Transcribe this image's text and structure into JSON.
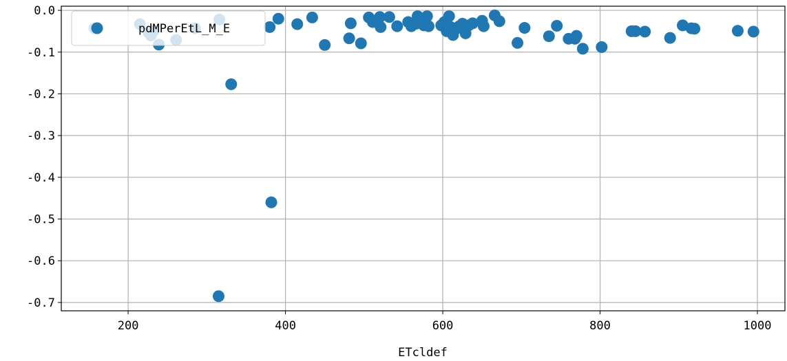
{
  "chart_data": {
    "type": "scatter",
    "xlabel": "ETcldef",
    "ylabel": "",
    "xlim": [
      115,
      1035
    ],
    "ylim": [
      -0.72,
      0.01
    ],
    "xticks": [
      200,
      400,
      600,
      800,
      1000
    ],
    "yticks": [
      0.0,
      -0.1,
      -0.2,
      -0.3,
      -0.4,
      -0.5,
      -0.6,
      -0.7
    ],
    "ytick_labels": [
      "0.0",
      "-0.1",
      "-0.2",
      "-0.3",
      "-0.4",
      "-0.5",
      "-0.6",
      "-0.7"
    ],
    "grid": true,
    "legend_position": "top-left",
    "color": "#1f77b4",
    "series": [
      {
        "name": "pdMPerEtL_M_E",
        "points": [
          [
            157,
            -0.043
          ],
          [
            215,
            -0.033
          ],
          [
            226,
            -0.053
          ],
          [
            229,
            -0.06
          ],
          [
            232,
            -0.05
          ],
          [
            239,
            -0.082
          ],
          [
            261,
            -0.071
          ],
          [
            285,
            -0.043
          ],
          [
            315,
            -0.685
          ],
          [
            316,
            -0.022
          ],
          [
            331,
            -0.177
          ],
          [
            380,
            -0.04
          ],
          [
            382,
            -0.46
          ],
          [
            391,
            -0.02
          ],
          [
            415,
            -0.033
          ],
          [
            434,
            -0.017
          ],
          [
            450,
            -0.083
          ],
          [
            481,
            -0.067
          ],
          [
            483,
            -0.031
          ],
          [
            496,
            -0.079
          ],
          [
            506,
            -0.017
          ],
          [
            511,
            -0.028
          ],
          [
            520,
            -0.016
          ],
          [
            521,
            -0.04
          ],
          [
            532,
            -0.016
          ],
          [
            542,
            -0.038
          ],
          [
            556,
            -0.028
          ],
          [
            560,
            -0.038
          ],
          [
            566,
            -0.032
          ],
          [
            568,
            -0.014
          ],
          [
            573,
            -0.026
          ],
          [
            576,
            -0.036
          ],
          [
            580,
            -0.014
          ],
          [
            582,
            -0.038
          ],
          [
            598,
            -0.036
          ],
          [
            602,
            -0.028
          ],
          [
            605,
            -0.05
          ],
          [
            608,
            -0.014
          ],
          [
            610,
            -0.04
          ],
          [
            613,
            -0.059
          ],
          [
            617,
            -0.044
          ],
          [
            621,
            -0.038
          ],
          [
            625,
            -0.032
          ],
          [
            629,
            -0.055
          ],
          [
            633,
            -0.036
          ],
          [
            638,
            -0.031
          ],
          [
            650,
            -0.025
          ],
          [
            652,
            -0.038
          ],
          [
            666,
            -0.012
          ],
          [
            672,
            -0.026
          ],
          [
            695,
            -0.078
          ],
          [
            704,
            -0.042
          ],
          [
            735,
            -0.062
          ],
          [
            745,
            -0.037
          ],
          [
            760,
            -0.068
          ],
          [
            768,
            -0.068
          ],
          [
            770,
            -0.061
          ],
          [
            778,
            -0.092
          ],
          [
            802,
            -0.088
          ],
          [
            840,
            -0.05
          ],
          [
            845,
            -0.05
          ],
          [
            857,
            -0.051
          ],
          [
            889,
            -0.066
          ],
          [
            905,
            -0.036
          ],
          [
            916,
            -0.043
          ],
          [
            920,
            -0.044
          ],
          [
            975,
            -0.049
          ],
          [
            995,
            -0.051
          ]
        ]
      }
    ]
  }
}
